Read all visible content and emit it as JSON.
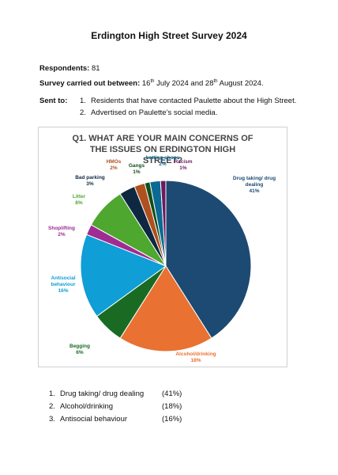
{
  "header": {
    "title": "Erdington High Street Survey 2024"
  },
  "respondents": {
    "label": "Respondents:",
    "value": 81
  },
  "survey": {
    "label": "Survey carried out between:",
    "parts": [
      "16",
      "th",
      " July 2024 and 28",
      "th",
      " August 2024."
    ]
  },
  "sent_to": {
    "label": "Sent to:",
    "items": [
      {
        "num": "1.",
        "text": "Residents that have contacted Paulette about the High Street."
      },
      {
        "num": "2.",
        "text": "Advertised on Paulette’s social media."
      }
    ]
  },
  "chart_data": {
    "type": "pie",
    "title": "Q1. WHAT ARE YOUR MAIN CONCERNS OF THE ISSUES ON ERDINGTON HIGH STREET?",
    "categories": [
      "Drug taking/ drug dealing",
      "Alcohol/drinking",
      "Begging",
      "Antisocial behaviour",
      "Shoplifting",
      "Litter",
      "Bad parking",
      "HMOs",
      "Gangs",
      "betting shops",
      "Racism"
    ],
    "values": [
      41,
      18,
      6,
      16,
      2,
      8,
      3,
      2,
      1,
      2,
      1
    ],
    "value_labels": [
      "41%",
      "18%",
      "6%",
      "16%",
      "2%",
      "8%",
      "3%",
      "2%",
      "1%",
      "2%",
      "1%"
    ],
    "colors": [
      "#1d4a72",
      "#e97132",
      "#196b24",
      "#0f9ed5",
      "#a02b93",
      "#4ea72e",
      "#0e2841",
      "#b0501f",
      "#124f1a",
      "#0b6a94",
      "#6b1a5e"
    ]
  },
  "summary": {
    "items": [
      {
        "num": "1.",
        "text": "Drug taking/ drug dealing",
        "pct": "(41%)"
      },
      {
        "num": "2.",
        "text": "Alcohol/drinking",
        "pct": "(18%)"
      },
      {
        "num": "3.",
        "text": "Antisocial behaviour",
        "pct": "(16%)"
      }
    ]
  }
}
